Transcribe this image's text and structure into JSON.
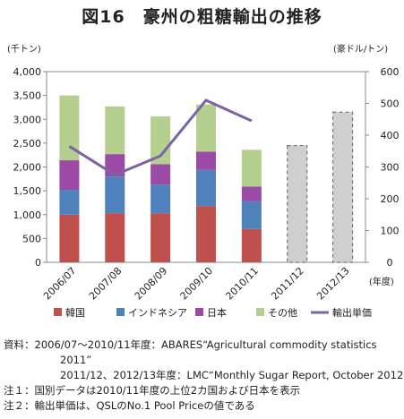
{
  "title": "図16　豪州の粗糖輸出の推移",
  "chart_data": {
    "type": "bar",
    "stacked": true,
    "categories": [
      "2006/07",
      "2007/08",
      "2008/09",
      "2009/10",
      "2010/11",
      "2011/12",
      "2012/13"
    ],
    "series": [
      {
        "name": "韓国",
        "color": "#c0504d",
        "values": [
          1000,
          1030,
          1030,
          1180,
          700,
          null,
          null
        ]
      },
      {
        "name": "インドネシア",
        "color": "#4f81bd",
        "values": [
          520,
          770,
          600,
          760,
          580,
          null,
          null
        ]
      },
      {
        "name": "日本",
        "color": "#9b4aa6",
        "values": [
          620,
          470,
          430,
          380,
          310,
          null,
          null
        ]
      },
      {
        "name": "その他",
        "color": "#b5cf8f",
        "values": [
          1360,
          1000,
          1000,
          990,
          770,
          null,
          null
        ]
      }
    ],
    "forecast_totals": {
      "series_style": "dashed-gray",
      "values": [
        null,
        null,
        null,
        null,
        null,
        2450,
        3150
      ]
    },
    "line_series": {
      "name": "輸出単価",
      "color": "#7e62a6",
      "axis": "right",
      "values": [
        365,
        275,
        335,
        510,
        445,
        null,
        null
      ]
    },
    "y_left": {
      "label": "(千トン)",
      "min": 0,
      "max": 4000,
      "step": 500,
      "ticks": [
        "0",
        "500",
        "1,000",
        "1,500",
        "2,000",
        "2,500",
        "3,000",
        "3,500",
        "4,000"
      ]
    },
    "y_right": {
      "label": "(豪ドル/トン)",
      "min": 0,
      "max": 600,
      "step": 100,
      "ticks": [
        "0",
        "100",
        "200",
        "300",
        "400",
        "500",
        "600"
      ]
    },
    "x_label": "(年度)",
    "legend_position": "bottom",
    "grid": false
  },
  "notes": [
    "資料：2006/07～2010/11年度：ABARES“Agricultural commodity statistics",
    "2011”",
    "2011/12、2012/13年度：LMC“Monthly Sugar Report, October 2012”",
    "注１：国別データは2010/11年度の上位2カ国および日本を表示",
    "注２：輸出単価は、QSLのNo.1 Pool Priceの値である"
  ]
}
